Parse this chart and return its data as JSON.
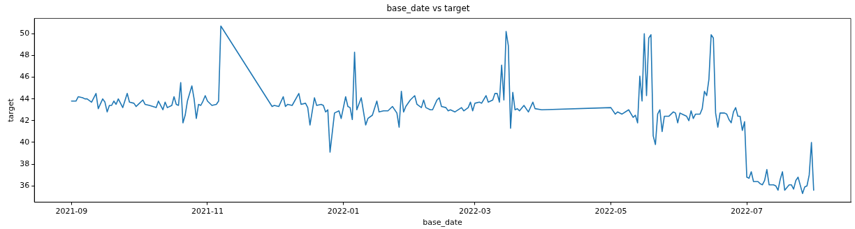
{
  "chart_data": {
    "type": "line",
    "title": "base_date vs target",
    "xlabel": "base_date",
    "ylabel": "target",
    "grid": false,
    "legend": false,
    "marker": "none",
    "line_style": "solid",
    "xlim": [
      "2021-08-15T08:00",
      "2022-08-16T16:00"
    ],
    "xticks": [
      "2021-09",
      "2021-11",
      "2022-01",
      "2022-03",
      "2022-05",
      "2022-07"
    ],
    "ylim": [
      34.5,
      51.4
    ],
    "yticks": [
      36,
      38,
      40,
      42,
      44,
      46,
      48,
      50
    ],
    "series": [
      {
        "color": "#1f77b4",
        "x": [
          "2021-09-01",
          "2021-09-03",
          "2021-09-04",
          "2021-09-06",
          "2021-09-07",
          "2021-09-08",
          "2021-09-10",
          "2021-09-12",
          "2021-09-13",
          "2021-09-15",
          "2021-09-16",
          "2021-09-17",
          "2021-09-18",
          "2021-09-19",
          "2021-09-20",
          "2021-09-21",
          "2021-09-22",
          "2021-09-24",
          "2021-09-26",
          "2021-09-27",
          "2021-09-29",
          "2021-09-30",
          "2021-10-01",
          "2021-10-03",
          "2021-10-04",
          "2021-10-06",
          "2021-10-09",
          "2021-10-10",
          "2021-10-12",
          "2021-10-13",
          "2021-10-14",
          "2021-10-16",
          "2021-10-17",
          "2021-10-18",
          "2021-10-19",
          "2021-10-20",
          "2021-10-21",
          "2021-10-22",
          "2021-10-23",
          "2021-10-25",
          "2021-10-26",
          "2021-10-27",
          "2021-10-28",
          "2021-10-29",
          "2021-10-30",
          "2021-10-31",
          "2021-11-01",
          "2021-11-03",
          "2021-11-05",
          "2021-11-06",
          "2021-11-07",
          "2021-11-30",
          "2021-12-01",
          "2021-12-03",
          "2021-12-05",
          "2021-12-06",
          "2021-12-07",
          "2021-12-09",
          "2021-12-12",
          "2021-12-13",
          "2021-12-15",
          "2021-12-16",
          "2021-12-17",
          "2021-12-19",
          "2021-12-20",
          "2021-12-22",
          "2021-12-23",
          "2021-12-24",
          "2021-12-25",
          "2021-12-26",
          "2021-12-28",
          "2021-12-30",
          "2021-12-31",
          "2022-01-02",
          "2022-01-03",
          "2022-01-04",
          "2022-01-05",
          "2022-01-06",
          "2022-01-07",
          "2022-01-09",
          "2022-01-11",
          "2022-01-12",
          "2022-01-14",
          "2022-01-16",
          "2022-01-17",
          "2022-01-19",
          "2022-01-21",
          "2022-01-23",
          "2022-01-25",
          "2022-01-26",
          "2022-01-27",
          "2022-01-28",
          "2022-01-29",
          "2022-01-31",
          "2022-02-02",
          "2022-02-03",
          "2022-02-05",
          "2022-02-06",
          "2022-02-07",
          "2022-02-09",
          "2022-02-10",
          "2022-02-12",
          "2022-02-13",
          "2022-02-14",
          "2022-02-16",
          "2022-02-17",
          "2022-02-18",
          "2022-02-20",
          "2022-02-23",
          "2022-02-24",
          "2022-02-26",
          "2022-02-27",
          "2022-02-28",
          "2022-03-01",
          "2022-03-03",
          "2022-03-04",
          "2022-03-06",
          "2022-03-07",
          "2022-03-09",
          "2022-03-10",
          "2022-03-11",
          "2022-03-12",
          "2022-03-13",
          "2022-03-14",
          "2022-03-15",
          "2022-03-16",
          "2022-03-17",
          "2022-03-18",
          "2022-03-19",
          "2022-03-20",
          "2022-03-21",
          "2022-03-23",
          "2022-03-25",
          "2022-03-27",
          "2022-03-28",
          "2022-03-31",
          "2022-05-01",
          "2022-05-03",
          "2022-05-04",
          "2022-05-06",
          "2022-05-09",
          "2022-05-11",
          "2022-05-12",
          "2022-05-13",
          "2022-05-14",
          "2022-05-15",
          "2022-05-16",
          "2022-05-17",
          "2022-05-18",
          "2022-05-19",
          "2022-05-20",
          "2022-05-21",
          "2022-05-22",
          "2022-05-23",
          "2022-05-24",
          "2022-05-25",
          "2022-05-26",
          "2022-05-27",
          "2022-05-29",
          "2022-05-30",
          "2022-05-31",
          "2022-06-01",
          "2022-06-02",
          "2022-06-04",
          "2022-06-05",
          "2022-06-06",
          "2022-06-07",
          "2022-06-08",
          "2022-06-10",
          "2022-06-11",
          "2022-06-12",
          "2022-06-13",
          "2022-06-14",
          "2022-06-15",
          "2022-06-16",
          "2022-06-17",
          "2022-06-18",
          "2022-06-19",
          "2022-06-21",
          "2022-06-22",
          "2022-06-23",
          "2022-06-24",
          "2022-06-25",
          "2022-06-26",
          "2022-06-27",
          "2022-06-28",
          "2022-06-29",
          "2022-06-30",
          "2022-07-01",
          "2022-07-02",
          "2022-07-03",
          "2022-07-04",
          "2022-07-06",
          "2022-07-07",
          "2022-07-08",
          "2022-07-09",
          "2022-07-10",
          "2022-07-11",
          "2022-07-13",
          "2022-07-14",
          "2022-07-15",
          "2022-07-16",
          "2022-07-17",
          "2022-07-18",
          "2022-07-20",
          "2022-07-21",
          "2022-07-22",
          "2022-07-23",
          "2022-07-24",
          "2022-07-26",
          "2022-07-27",
          "2022-07-28",
          "2022-07-29",
          "2022-07-30",
          "2022-07-31"
        ],
        "values": [
          43.8,
          43.8,
          44.2,
          44.1,
          44.0,
          44.0,
          43.7,
          44.5,
          43.1,
          44.0,
          43.7,
          42.8,
          43.4,
          43.4,
          43.8,
          43.5,
          44.0,
          43.2,
          44.5,
          43.7,
          43.6,
          43.3,
          43.5,
          43.9,
          43.5,
          43.4,
          43.2,
          43.8,
          43.0,
          43.7,
          43.2,
          43.4,
          44.2,
          43.5,
          43.4,
          45.5,
          41.8,
          42.5,
          43.8,
          45.2,
          44.0,
          42.2,
          43.5,
          43.4,
          43.8,
          44.3,
          43.8,
          43.4,
          43.5,
          43.8,
          50.7,
          43.3,
          43.4,
          43.3,
          44.2,
          43.3,
          43.5,
          43.4,
          44.5,
          43.5,
          43.6,
          43.2,
          41.6,
          44.1,
          43.4,
          43.5,
          43.4,
          42.8,
          43.0,
          39.1,
          42.7,
          42.9,
          42.2,
          44.2,
          43.3,
          43.2,
          42.1,
          48.3,
          43.0,
          44.1,
          41.6,
          42.2,
          42.5,
          43.8,
          42.8,
          42.9,
          42.9,
          43.3,
          42.7,
          41.4,
          44.7,
          42.8,
          43.3,
          43.9,
          44.3,
          43.5,
          43.2,
          43.9,
          43.2,
          43.0,
          43.0,
          43.9,
          44.1,
          43.3,
          43.2,
          42.9,
          43.0,
          42.8,
          43.2,
          42.9,
          43.2,
          43.7,
          42.9,
          43.6,
          43.7,
          43.6,
          44.3,
          43.7,
          43.9,
          44.5,
          44.5,
          43.7,
          47.1,
          43.9,
          50.2,
          48.9,
          41.3,
          44.6,
          43.0,
          43.1,
          42.9,
          43.4,
          42.8,
          43.7,
          43.1,
          43.0,
          43.2,
          42.6,
          42.8,
          42.6,
          43.0,
          42.3,
          42.5,
          41.8,
          46.1,
          43.8,
          50.0,
          44.3,
          49.6,
          49.9,
          40.6,
          39.8,
          42.6,
          43.0,
          41.0,
          42.4,
          42.4,
          42.4,
          42.8,
          42.7,
          41.8,
          42.7,
          42.6,
          42.4,
          42.0,
          42.9,
          42.2,
          42.6,
          42.6,
          43.1,
          44.7,
          44.3,
          45.8,
          49.9,
          49.6,
          42.7,
          41.4,
          42.7,
          42.7,
          42.6,
          42.1,
          41.8,
          42.8,
          43.2,
          42.4,
          42.4,
          41.1,
          41.9,
          36.8,
          36.7,
          37.3,
          36.4,
          36.4,
          36.2,
          36.1,
          36.5,
          37.5,
          36.1,
          36.1,
          36.0,
          35.6,
          36.6,
          37.3,
          35.6,
          36.1,
          36.1,
          35.7,
          36.5,
          36.8,
          35.3,
          35.9,
          36.0,
          37.0,
          40.0,
          35.6
        ]
      }
    ]
  }
}
